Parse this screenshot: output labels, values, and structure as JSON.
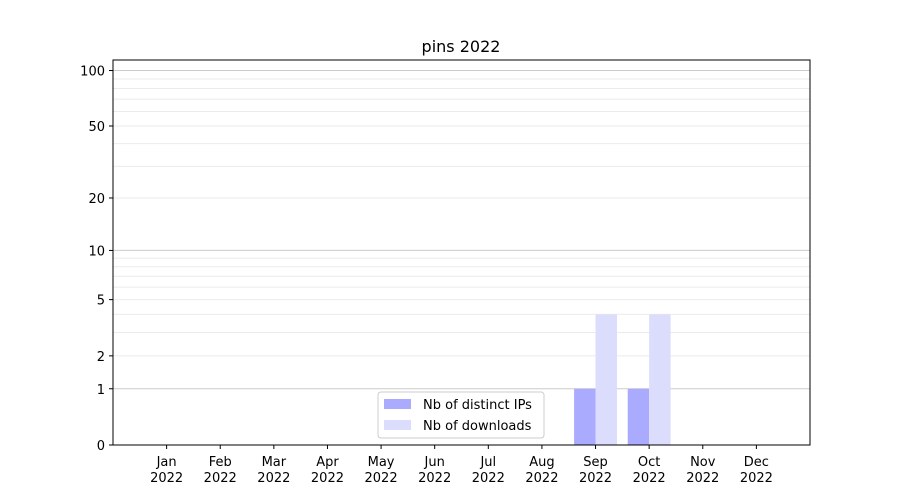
{
  "chart_data": {
    "type": "bar",
    "title": "pins 2022",
    "xlabel": "",
    "ylabel": "",
    "y_scale": "log(1+y)",
    "ylim": [
      0,
      114
    ],
    "grid": "horizontal (major and minor)",
    "legend_placement": "lower center",
    "categories": [
      "Jan\n2022",
      "Feb\n2022",
      "Mar\n2022",
      "Apr\n2022",
      "May\n2022",
      "Jun\n2022",
      "Jul\n2022",
      "Aug\n2022",
      "Sep\n2022",
      "Oct\n2022",
      "Nov\n2022",
      "Dec\n2022"
    ],
    "y_ticks": [
      0,
      1,
      2,
      5,
      10,
      20,
      50,
      100
    ],
    "series": [
      {
        "name": "Nb of distinct IPs",
        "color": "#aaaaff",
        "values": [
          0,
          0,
          0,
          0,
          0,
          0,
          0,
          0,
          1,
          1,
          0,
          0
        ]
      },
      {
        "name": "Nb of downloads",
        "color": "#dcdcfc",
        "values": [
          0,
          0,
          0,
          0,
          0,
          0,
          0,
          0,
          4,
          4,
          0,
          0
        ]
      }
    ]
  }
}
